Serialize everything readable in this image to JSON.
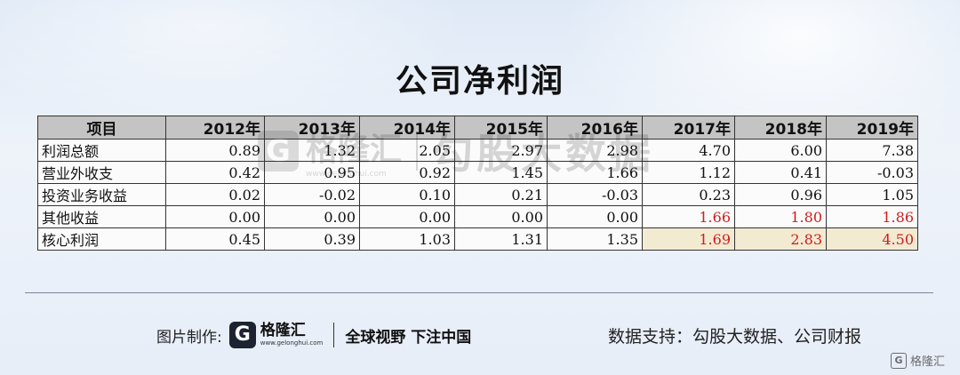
{
  "title": "公司净利润",
  "table": {
    "header": [
      "项目",
      "2012年",
      "2013年",
      "2014年",
      "2015年",
      "2016年",
      "2017年",
      "2018年",
      "2019年"
    ],
    "rows": [
      {
        "label": "利润总额",
        "values": [
          "0.89",
          "1.32",
          "2.05",
          "2.97",
          "2.98",
          "4.70",
          "6.00",
          "7.38"
        ]
      },
      {
        "label": "营业外收支",
        "values": [
          "0.42",
          "0.95",
          "0.92",
          "1.45",
          "1.66",
          "1.12",
          "0.41",
          "-0.03"
        ]
      },
      {
        "label": "投资业务收益",
        "values": [
          "0.02",
          "-0.02",
          "0.10",
          "0.21",
          "-0.03",
          "0.23",
          "0.96",
          "1.05"
        ]
      },
      {
        "label": "其他收益",
        "values": [
          "0.00",
          "0.00",
          "0.00",
          "0.00",
          "0.00",
          "1.66",
          "1.80",
          "1.86"
        ]
      },
      {
        "label": "核心利润",
        "values": [
          "0.45",
          "0.39",
          "1.03",
          "1.31",
          "1.35",
          "1.69",
          "2.83",
          "4.50"
        ]
      }
    ],
    "highlight_text_color": "#d11b1b",
    "highlight_cell_bg": "#f3ead2"
  },
  "watermark": {
    "logo_glyph": "G",
    "brand": "格隆汇",
    "source": "勾股大数据",
    "url": "www.gelonghui.com"
  },
  "footer": {
    "maker_label": "图片制作:",
    "logo_glyph": "G",
    "logo_name": "格隆汇",
    "logo_url": "www.gelonghui.com",
    "slogan": "全球视野 下注中国",
    "source": "数据支持：勾股大数据、公司财报"
  },
  "corner_mark": {
    "glyph": "G",
    "text": "格隆汇"
  }
}
